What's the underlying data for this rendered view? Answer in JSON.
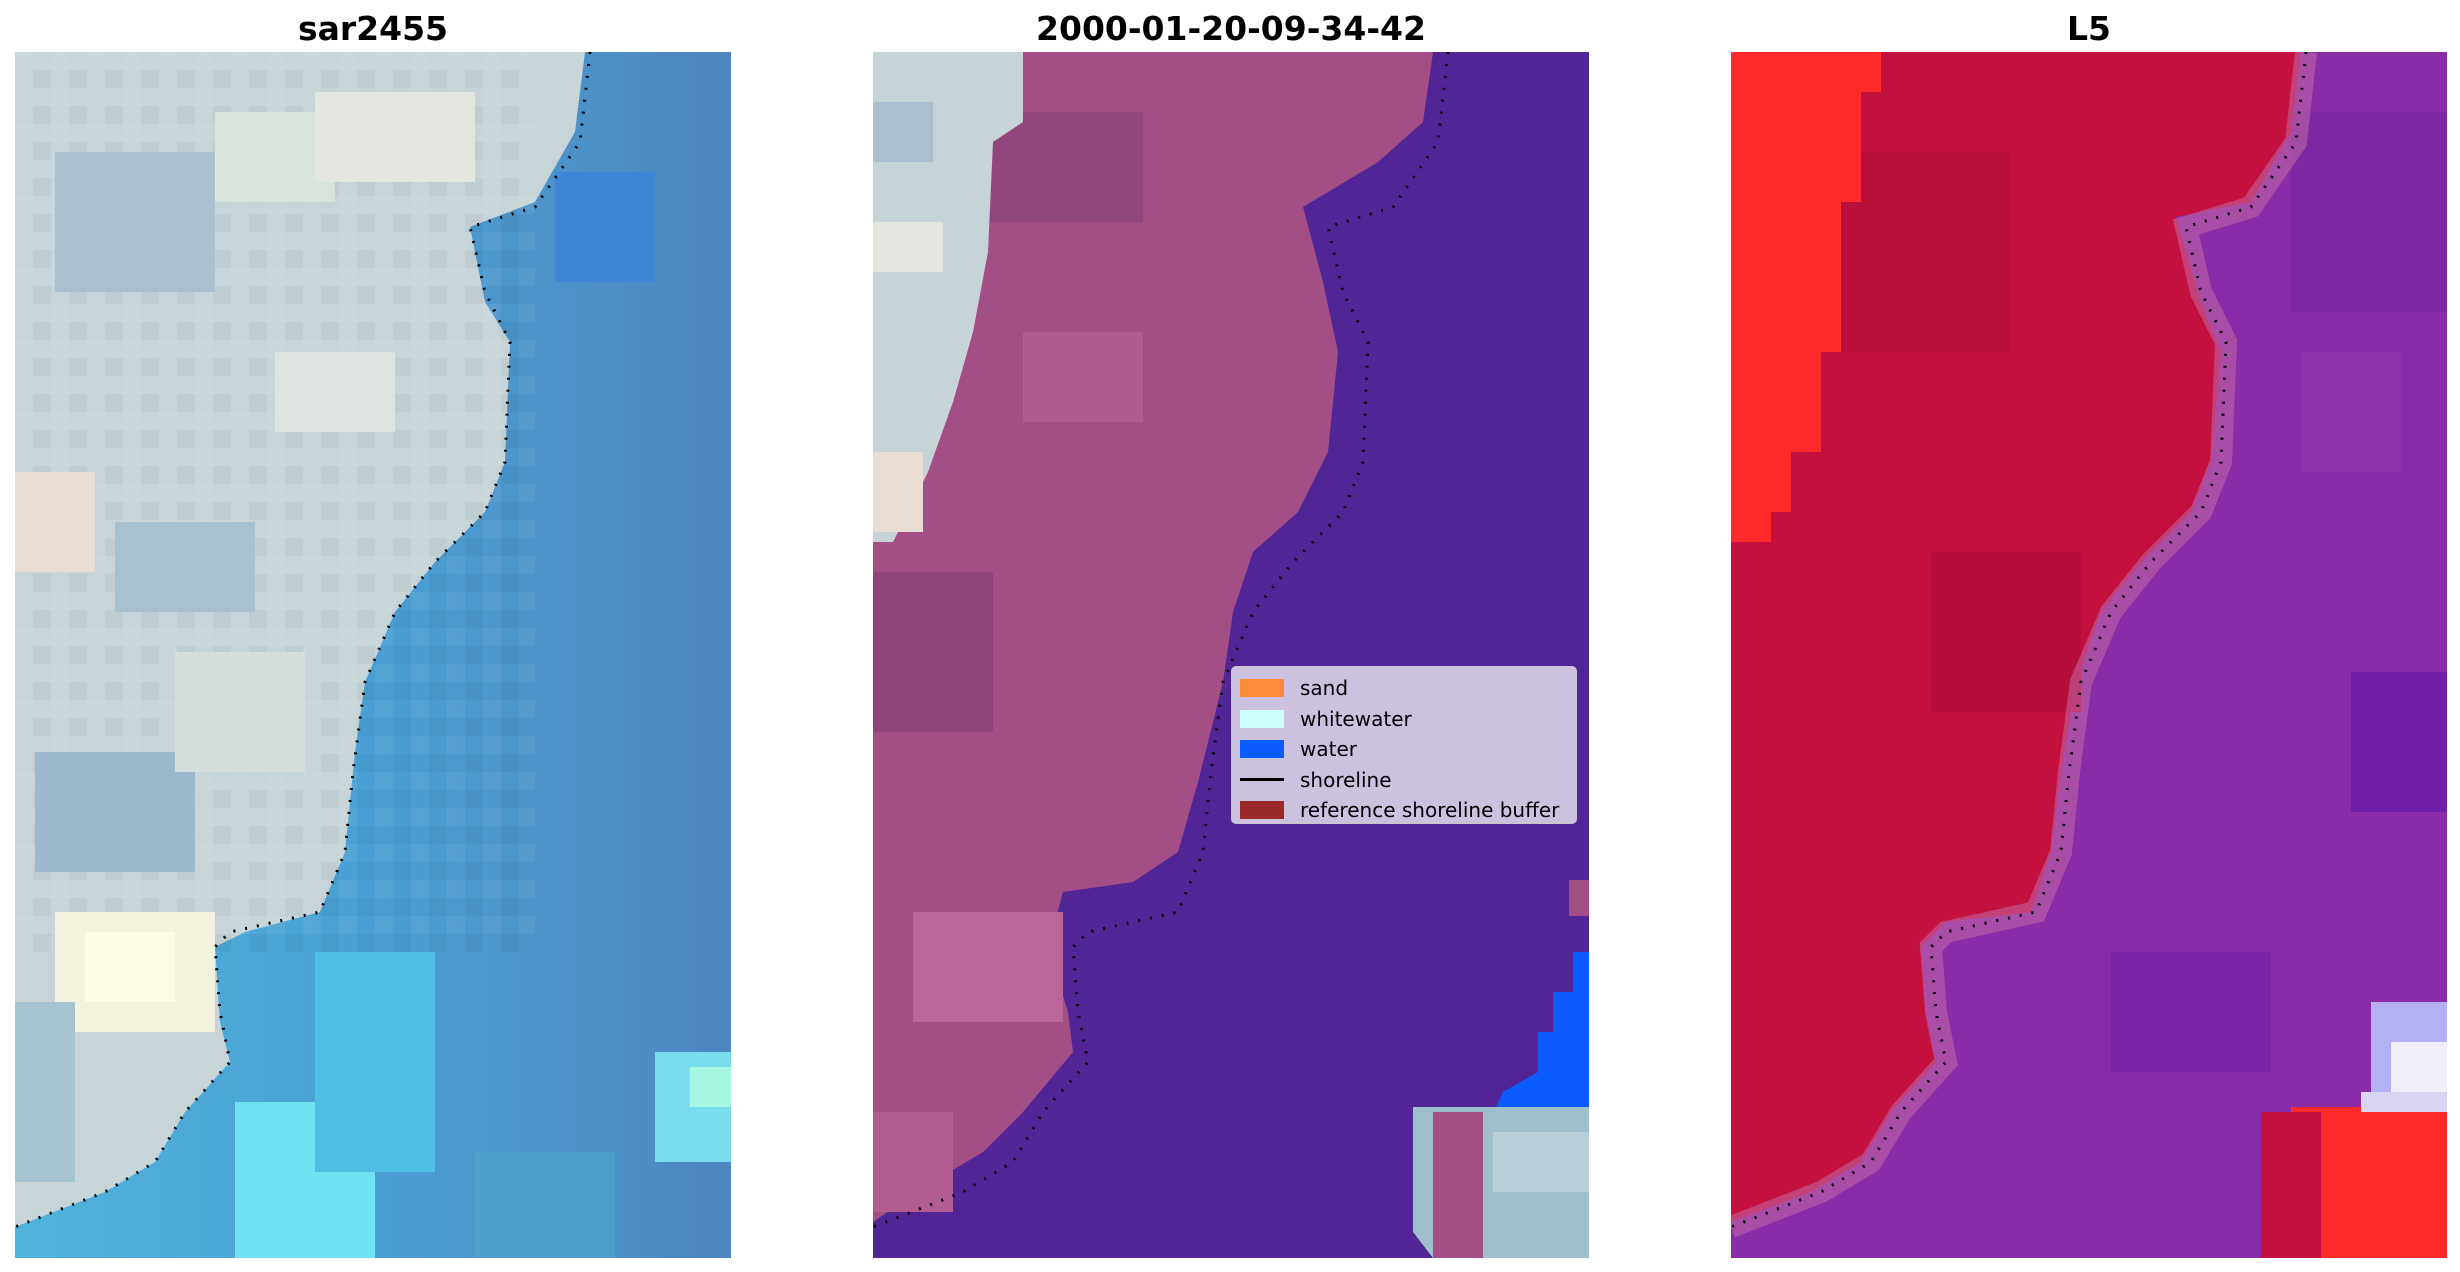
{
  "panels": [
    {
      "title": "sar2455"
    },
    {
      "title": "2000-01-20-09-34-42"
    },
    {
      "title": "L5"
    }
  ],
  "legend": {
    "items": [
      {
        "label": "sand",
        "type": "patch",
        "color": "#ff8c3a"
      },
      {
        "label": "whitewater",
        "type": "patch",
        "color": "#ccffff"
      },
      {
        "label": "water",
        "type": "patch",
        "color": "#0a5cff"
      },
      {
        "label": "shoreline",
        "type": "line",
        "color": "#000000"
      },
      {
        "label": "reference shoreline buffer",
        "type": "patch",
        "color": "#9a2a2a"
      }
    ]
  },
  "colors": {
    "classified_water": "#522596",
    "classified_land": "#a34f86",
    "water_patch": "#0a5cff",
    "l5_land": "#c3103f",
    "l5_water": "#8a2ca8",
    "l5_bright": "#ff2a2a"
  },
  "icons": [
    "shoreline-dotted-line"
  ]
}
